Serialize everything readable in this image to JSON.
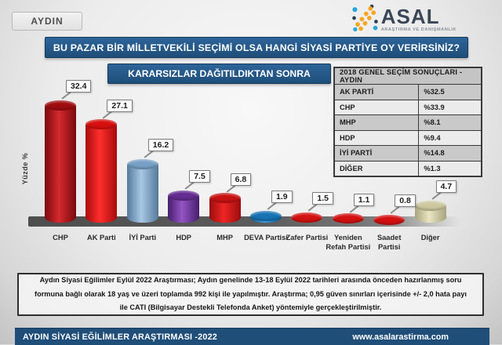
{
  "badge": "AYDIN",
  "logo": {
    "name": "ASAL",
    "subtitle": "ARAŞTIRMA VE DANIŞMANLIK",
    "colors": {
      "orange": "#f5a623",
      "teal": "#2aa8d8",
      "navy": "#2c3e50",
      "text": "#3b4656"
    }
  },
  "title": "BU PAZAR BİR MİLLETVEKİLİ SEÇİMİ OLSA HANGİ SİYASİ PARTİYE OY VERİRSİNİZ?",
  "subtitle": "KARARSIZLAR DAĞITILDIKTAN SONRA",
  "accent_color": "#1f4e79",
  "results_table": {
    "title": "2018 GENEL SEÇİM SONUÇLARI - AYDIN",
    "rows": [
      {
        "party": "AK PARTİ",
        "value": "%32.5"
      },
      {
        "party": "CHP",
        "value": "%33.9"
      },
      {
        "party": "MHP",
        "value": "%8.1"
      },
      {
        "party": "HDP",
        "value": "%9.4"
      },
      {
        "party": "İYİ PARTİ",
        "value": "%14.8"
      },
      {
        "party": "DİĞER",
        "value": "%1.3"
      }
    ]
  },
  "chart_data": {
    "type": "bar",
    "title": "KARARSIZLAR DAĞITILDIKTAN SONRA",
    "xlabel": "",
    "ylabel": "Yüzde %",
    "ylim": [
      0,
      35
    ],
    "grid": false,
    "legend": false,
    "categories": [
      "CHP",
      "AK Parti",
      "İYİ Parti",
      "HDP",
      "MHP",
      "DEVA Partisi",
      "Zafer Partisi",
      "Yeniden Refah Partisi",
      "Saadet Partisi",
      "Diğer"
    ],
    "values": [
      32.4,
      27.1,
      16.2,
      7.5,
      6.8,
      1.9,
      1.5,
      1.1,
      0.8,
      4.7
    ],
    "bars": [
      {
        "label": "CHP",
        "value": 32.4,
        "display": "32.4",
        "edge": "#7a090d",
        "light": "#d42a2e",
        "cap": "#9f0d11"
      },
      {
        "label": "AK Parti",
        "value": 27.1,
        "display": "27.1",
        "edge": "#a80b0b",
        "light": "#ff2e2e",
        "cap": "#d80f0f"
      },
      {
        "label": "İYİ Parti",
        "value": 16.2,
        "display": "16.2",
        "edge": "#54799c",
        "light": "#a8c8e4",
        "cap": "#78a0c6"
      },
      {
        "label": "HDP",
        "value": 7.5,
        "display": "7.5",
        "edge": "#471d6b",
        "light": "#9355c5",
        "cap": "#652c92"
      },
      {
        "label": "MHP",
        "value": 6.8,
        "display": "6.8",
        "edge": "#990d0d",
        "light": "#f02525",
        "cap": "#c81212"
      },
      {
        "label": "DEVA Partisi",
        "value": 1.9,
        "display": "1.9",
        "edge": "#0c4f84",
        "light": "#3fa0dd",
        "cap": "#1774b4"
      },
      {
        "label": "Zafer Partisi",
        "value": 1.5,
        "display": "1.5",
        "edge": "#a00c0c",
        "light": "#f52a2a",
        "cap": "#d31111"
      },
      {
        "label": "Yeniden Refah Partisi",
        "value": 1.1,
        "display": "1.1",
        "edge": "#a00c0c",
        "light": "#f52a2a",
        "cap": "#d31111"
      },
      {
        "label": "Saadet Partisi",
        "value": 0.8,
        "display": "0.8",
        "edge": "#a00c0c",
        "light": "#f52a2a",
        "cap": "#d31111"
      },
      {
        "label": "Diğer",
        "value": 4.7,
        "display": "4.7",
        "edge": "#a9a47e",
        "light": "#e9e5c2",
        "cap": "#cdc89e"
      }
    ]
  },
  "methodology": "Aydın Siyasi Eğilimler Eylül 2022 Araştırması; Aydın genelinde 13-18 Eylül 2022 tarihleri arasında önceden hazırlanmış soru formuna bağlı olarak 18 yaş ve üzeri toplamda 992 kişi ile yapılmıştır. Araştırma; 0,95 güven sınırları içerisinde +/- 2,0 hata payı ile CATI (Bilgisayar Destekli Telefonda Anket) yöntemiyle gerçekleştirilmiştir.",
  "footer": {
    "left": "AYDIN SİYASİ EĞİLİMLER ARAŞTIRMASI -2022",
    "right": "www.asalarastirma.com"
  }
}
